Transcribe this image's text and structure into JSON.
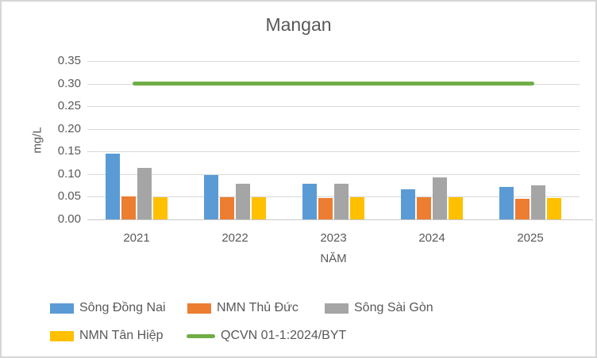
{
  "frame": {
    "background": "#ffffff",
    "border_color": "#d6d6d6"
  },
  "colors": {
    "text": "#595959",
    "gridline": "#d9d9d9",
    "axis_line": "#c9c9c9"
  },
  "chart_data": {
    "type": "bar",
    "title": "Mangan",
    "xlabel": "NĂM",
    "ylabel": "mg/L",
    "categories": [
      "2021",
      "2022",
      "2023",
      "2024",
      "2025"
    ],
    "series": [
      {
        "name": "Sông Đồng Nai",
        "kind": "bar",
        "color": "#5B9BD5",
        "values": [
          0.145,
          0.098,
          0.079,
          0.067,
          0.072
        ]
      },
      {
        "name": "NMN Thủ Đức",
        "kind": "bar",
        "color": "#ED7D31",
        "values": [
          0.05,
          0.049,
          0.048,
          0.049,
          0.045
        ]
      },
      {
        "name": "Sông Sài Gòn",
        "kind": "bar",
        "color": "#A5A5A5",
        "values": [
          0.113,
          0.079,
          0.079,
          0.092,
          0.076
        ]
      },
      {
        "name": "NMN Tân Hiệp",
        "kind": "bar",
        "color": "#FFC000",
        "values": [
          0.049,
          0.049,
          0.049,
          0.049,
          0.047
        ]
      },
      {
        "name": "QCVN 01-1:2024/BYT",
        "kind": "line",
        "color": "#70AD47",
        "values": [
          0.3,
          0.3,
          0.3,
          0.3,
          0.3
        ]
      }
    ],
    "ylim": [
      0,
      0.35
    ],
    "ytick_step": 0.05,
    "ytick_labels": [
      "0.00",
      "0.05",
      "0.10",
      "0.15",
      "0.20",
      "0.25",
      "0.30",
      "0.35"
    ],
    "grid": true,
    "legend_position": "bottom"
  }
}
